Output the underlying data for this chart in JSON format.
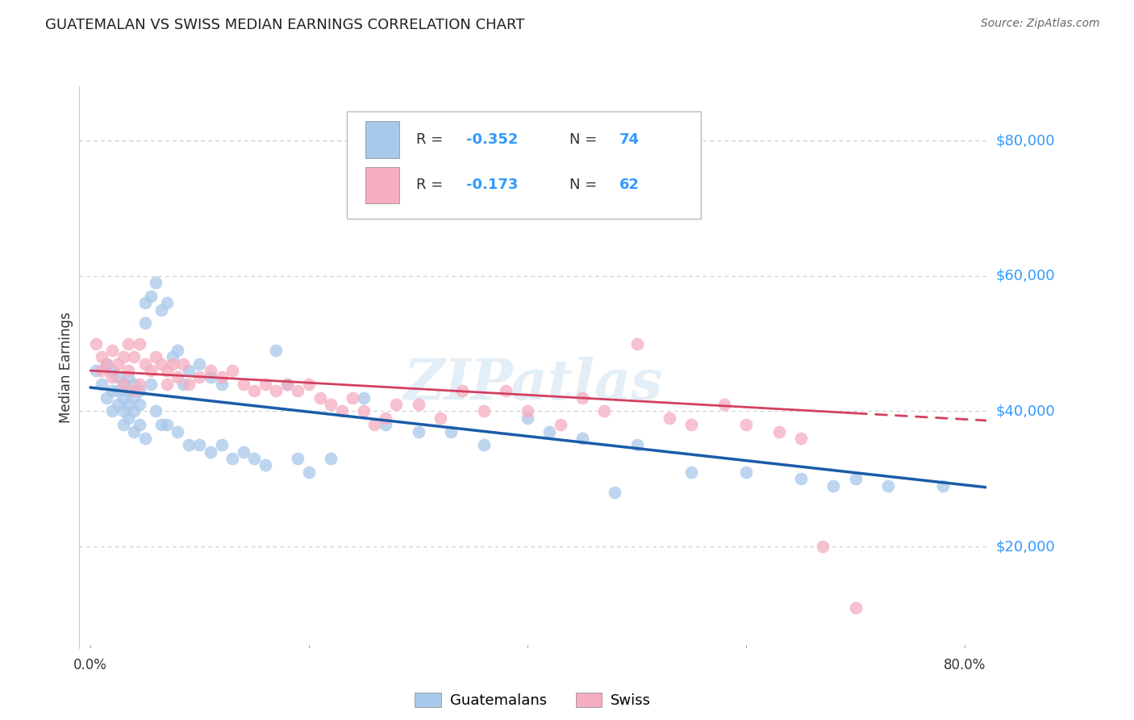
{
  "title": "GUATEMALAN VS SWISS MEDIAN EARNINGS CORRELATION CHART",
  "source": "Source: ZipAtlas.com",
  "ylabel": "Median Earnings",
  "watermark": "ZIPatlas",
  "guatemalan_color": "#a8c8ea",
  "swiss_color": "#f5adc0",
  "trend_guatemalan_color": "#1a5ca8",
  "trend_swiss_color": "#d44060",
  "ytick_labels": [
    "$20,000",
    "$40,000",
    "$60,000",
    "$80,000"
  ],
  "ytick_values": [
    20000,
    40000,
    60000,
    80000
  ],
  "ytick_color": "#3399ff",
  "ylim": [
    5000,
    88000
  ],
  "xlim": [
    -0.01,
    0.82
  ],
  "background_color": "#ffffff",
  "grid_color": "#cccccc",
  "g_intercept": 43500,
  "g_slope": -18000,
  "s_intercept": 46000,
  "s_slope": -9000,
  "guatemalan_x": [
    0.005,
    0.01,
    0.015,
    0.015,
    0.02,
    0.02,
    0.02,
    0.025,
    0.025,
    0.025,
    0.03,
    0.03,
    0.03,
    0.03,
    0.035,
    0.035,
    0.035,
    0.035,
    0.04,
    0.04,
    0.04,
    0.04,
    0.045,
    0.045,
    0.045,
    0.05,
    0.05,
    0.05,
    0.055,
    0.055,
    0.06,
    0.06,
    0.065,
    0.065,
    0.07,
    0.07,
    0.075,
    0.08,
    0.08,
    0.085,
    0.09,
    0.09,
    0.1,
    0.1,
    0.11,
    0.11,
    0.12,
    0.12,
    0.13,
    0.14,
    0.15,
    0.16,
    0.17,
    0.18,
    0.19,
    0.2,
    0.22,
    0.25,
    0.27,
    0.3,
    0.33,
    0.36,
    0.4,
    0.42,
    0.45,
    0.48,
    0.5,
    0.55,
    0.6,
    0.65,
    0.68,
    0.7,
    0.73,
    0.78
  ],
  "guatemalan_y": [
    46000,
    44000,
    47000,
    42000,
    46000,
    43000,
    40000,
    45000,
    43000,
    41000,
    44000,
    42000,
    40000,
    38000,
    45000,
    43000,
    41000,
    39000,
    44000,
    42000,
    40000,
    37000,
    43000,
    41000,
    38000,
    56000,
    53000,
    36000,
    57000,
    44000,
    59000,
    40000,
    55000,
    38000,
    56000,
    38000,
    48000,
    49000,
    37000,
    44000,
    35000,
    46000,
    47000,
    35000,
    45000,
    34000,
    44000,
    35000,
    33000,
    34000,
    33000,
    32000,
    49000,
    44000,
    33000,
    31000,
    33000,
    42000,
    38000,
    37000,
    37000,
    35000,
    39000,
    37000,
    36000,
    28000,
    35000,
    31000,
    31000,
    30000,
    29000,
    30000,
    29000,
    29000
  ],
  "swiss_x": [
    0.005,
    0.01,
    0.01,
    0.015,
    0.02,
    0.02,
    0.025,
    0.03,
    0.03,
    0.035,
    0.035,
    0.04,
    0.04,
    0.045,
    0.045,
    0.05,
    0.055,
    0.06,
    0.065,
    0.07,
    0.07,
    0.075,
    0.08,
    0.085,
    0.09,
    0.1,
    0.11,
    0.12,
    0.13,
    0.14,
    0.15,
    0.16,
    0.17,
    0.18,
    0.19,
    0.2,
    0.21,
    0.22,
    0.23,
    0.24,
    0.25,
    0.26,
    0.27,
    0.28,
    0.3,
    0.32,
    0.34,
    0.36,
    0.38,
    0.4,
    0.43,
    0.45,
    0.47,
    0.5,
    0.53,
    0.55,
    0.58,
    0.6,
    0.63,
    0.65,
    0.67,
    0.7
  ],
  "swiss_y": [
    50000,
    48000,
    46000,
    47000,
    49000,
    45000,
    47000,
    48000,
    44000,
    50000,
    46000,
    48000,
    43000,
    50000,
    44000,
    47000,
    46000,
    48000,
    47000,
    46000,
    44000,
    47000,
    45000,
    47000,
    44000,
    45000,
    46000,
    45000,
    46000,
    44000,
    43000,
    44000,
    43000,
    44000,
    43000,
    44000,
    42000,
    41000,
    40000,
    42000,
    40000,
    38000,
    39000,
    41000,
    41000,
    39000,
    43000,
    40000,
    43000,
    40000,
    38000,
    42000,
    40000,
    50000,
    39000,
    38000,
    41000,
    38000,
    37000,
    36000,
    20000,
    11000
  ]
}
